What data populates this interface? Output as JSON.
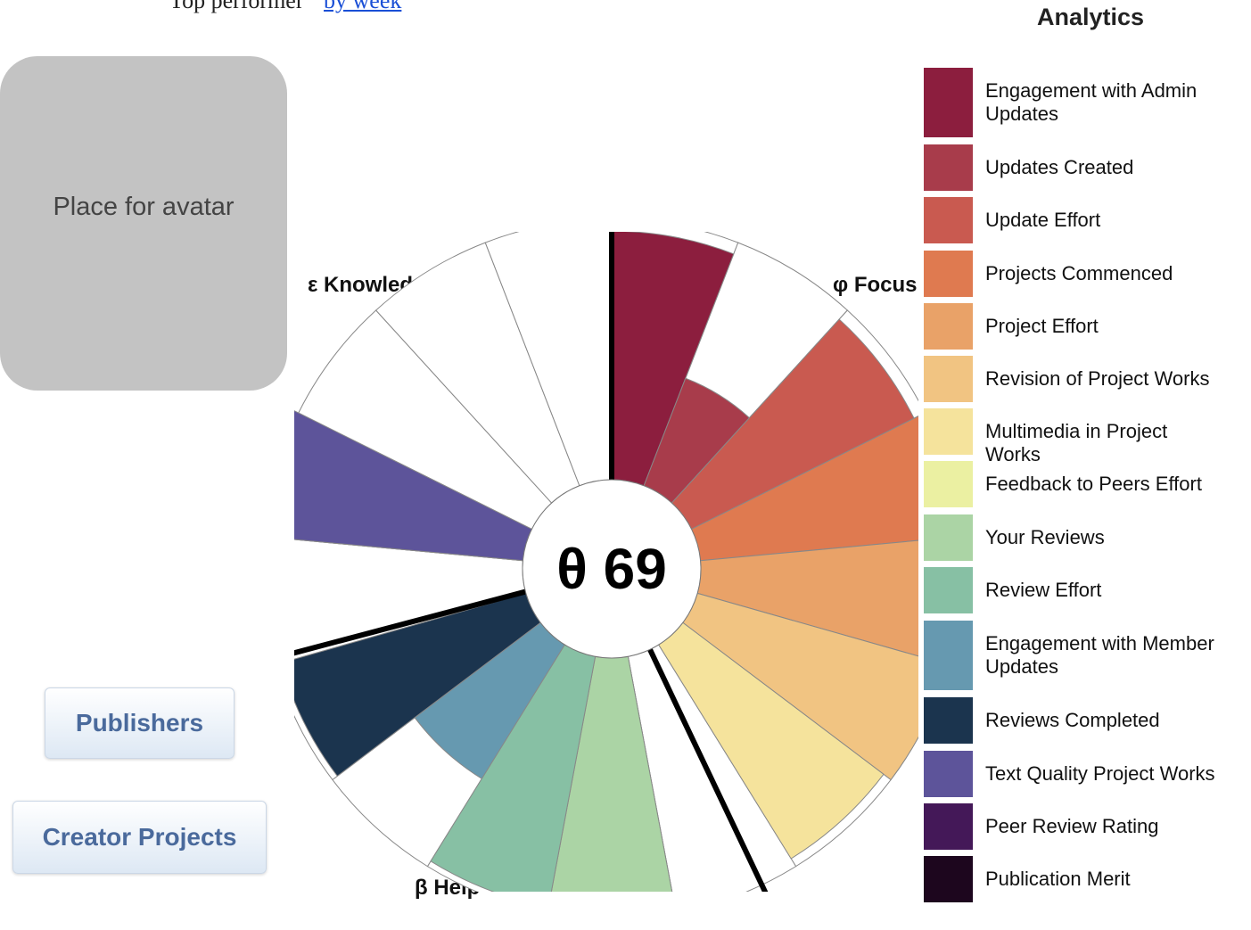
{
  "page": {
    "top_text": "Top performer",
    "top_link": "by week"
  },
  "avatar": {
    "placeholder": "Place for avatar"
  },
  "buttons": {
    "publishers": "Publishers",
    "creator_projects": "Creator Projects"
  },
  "legend": {
    "title": "Analytics",
    "items": [
      {
        "label": "Engagement with Admin Updates",
        "color": "#8c1e3e"
      },
      {
        "label": "Updates Created",
        "color": "#a83c4b"
      },
      {
        "label": "Update Effort",
        "color": "#c95a50"
      },
      {
        "label": "Projects Commenced",
        "color": "#df7a50"
      },
      {
        "label": "Project Effort",
        "color": "#e9a268"
      },
      {
        "label": "Revision of Project Works",
        "color": "#f1c482"
      },
      {
        "label": "Multimedia in Project Works",
        "color": "#f5e39c"
      },
      {
        "label": "Feedback to Peers Effort",
        "color": "#ebf0a2"
      },
      {
        "label": "Your Reviews",
        "color": "#abd4a5"
      },
      {
        "label": "Review Effort",
        "color": "#87c0a4"
      },
      {
        "label": "Engagement with Member Updates",
        "color": "#6699b0"
      },
      {
        "label": "Reviews Completed",
        "color": "#1b344e"
      },
      {
        "label": "Text Quality Project Works",
        "color": "#5d549a"
      },
      {
        "label": "Peer Review Rating",
        "color": "#441858"
      },
      {
        "label": "Publication Merit",
        "color": "#1d061e"
      }
    ]
  },
  "chart_data": {
    "type": "polar-area",
    "center_label": "θ 69",
    "categories": [
      "ε Knowledge",
      "φ Focus",
      "β Help"
    ],
    "max_value": 1.0,
    "slices": [
      {
        "series": "Engagement with Admin Updates",
        "value": 0.82,
        "color": "#8c1e3e"
      },
      {
        "series": "Updates Created",
        "value": 0.38,
        "color": "#a83c4b"
      },
      {
        "series": "Update Effort",
        "value": 0.82,
        "color": "#c95a50"
      },
      {
        "series": "Projects Commenced",
        "value": 0.84,
        "color": "#df7a50"
      },
      {
        "series": "Project Effort",
        "value": 0.84,
        "color": "#e9a268"
      },
      {
        "series": "Revision of Project Works",
        "value": 0.86,
        "color": "#f1c482"
      },
      {
        "series": "Multimedia in Project Works",
        "value": 0.83,
        "color": "#f5e39c"
      },
      {
        "series": "Feedback to Peers Effort",
        "value": 0.0,
        "color": "#ebf0a2"
      },
      {
        "series": "Your Reviews",
        "value": 0.86,
        "color": "#abd4a5"
      },
      {
        "series": "Review Effort",
        "value": 0.84,
        "color": "#87c0a4"
      },
      {
        "series": "Engagement with Member Updates",
        "value": 0.52,
        "color": "#6699b0"
      },
      {
        "series": "Reviews Completed",
        "value": 0.84,
        "color": "#1b344e"
      },
      {
        "series": "Text Quality Project Works",
        "value": 0.9,
        "color": "#5d549a"
      },
      {
        "series": "Peer Review Rating",
        "value": 0.0,
        "color": "#441858"
      },
      {
        "series": "Publication Merit",
        "value": 0.0,
        "color": "#1d061e"
      }
    ]
  }
}
